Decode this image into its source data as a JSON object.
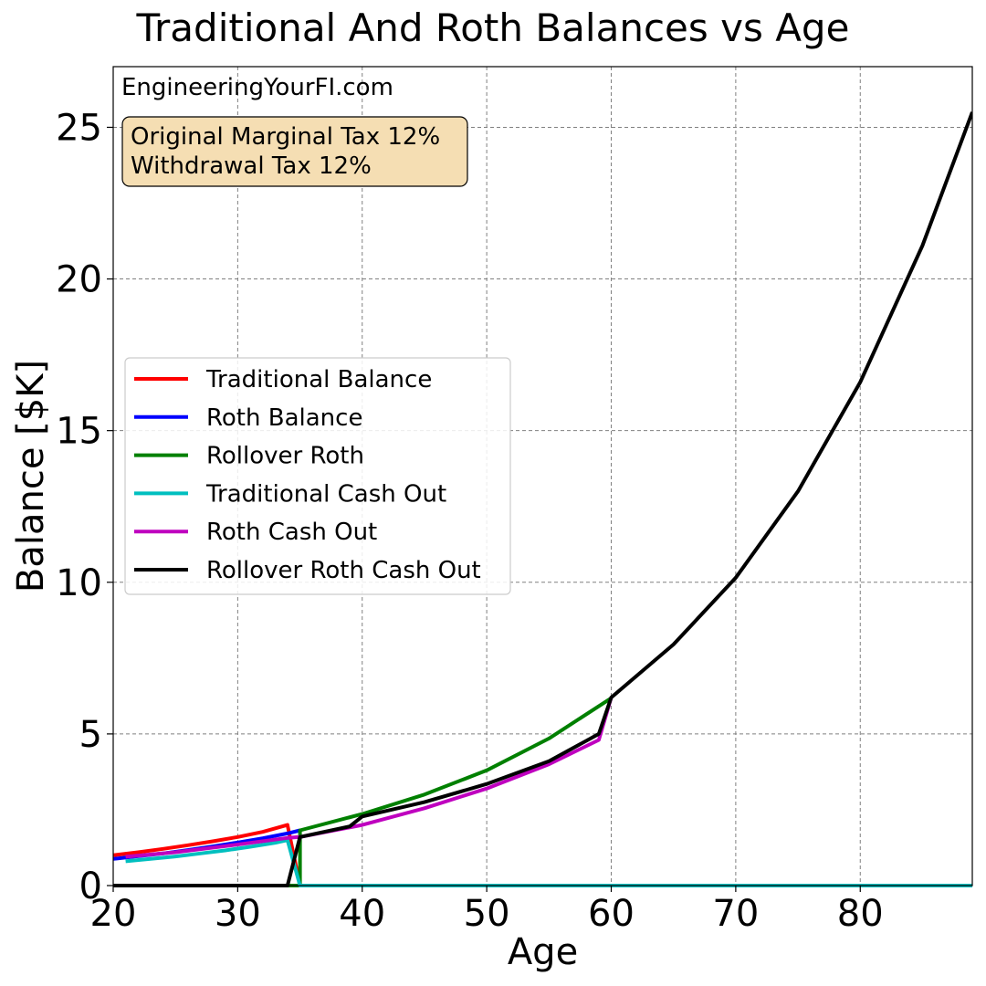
{
  "chart_data": {
    "type": "line",
    "title": "Traditional And Roth Balances vs Age",
    "xlabel": "Age",
    "ylabel": "Balance [$K]",
    "xlim": [
      20,
      89
    ],
    "ylim": [
      0,
      27
    ],
    "xticks": [
      20,
      30,
      40,
      50,
      60,
      70,
      80
    ],
    "yticks": [
      0,
      5,
      10,
      15,
      20,
      25
    ],
    "grid": true,
    "legend_position": "center-left",
    "watermark": "EngineeringYourFI.com",
    "annotation": {
      "lines": [
        "Original Marginal Tax 12%",
        "Withdrawal Tax 12%"
      ],
      "background": "#f5deb3"
    },
    "series": [
      {
        "name": "Traditional Balance",
        "color": "#ff0000",
        "x": [
          20,
          22,
          24,
          26,
          28,
          30,
          32,
          34,
          35
        ],
        "y": [
          1.0,
          1.1,
          1.21,
          1.33,
          1.46,
          1.6,
          1.77,
          2.0,
          0.0
        ]
      },
      {
        "name": "Roth Balance",
        "color": "#0000ff",
        "x": [
          20,
          22,
          24,
          26,
          28,
          30,
          32,
          34,
          35
        ],
        "y": [
          0.88,
          0.97,
          1.06,
          1.17,
          1.29,
          1.42,
          1.56,
          1.72,
          1.82
        ]
      },
      {
        "name": "Rollover Roth",
        "color": "#008000",
        "x": [
          20,
          35,
          35,
          40,
          45,
          50,
          55,
          60
        ],
        "y": [
          0,
          0,
          1.82,
          2.36,
          3.0,
          3.8,
          4.85,
          6.18
        ]
      },
      {
        "name": "Traditional Cash Out",
        "color": "#00bfbf",
        "x": [
          21,
          23,
          25,
          27,
          29,
          31,
          33,
          34,
          35,
          89
        ],
        "y": [
          0.8,
          0.88,
          0.96,
          1.06,
          1.16,
          1.28,
          1.41,
          1.5,
          0.0,
          0.0
        ]
      },
      {
        "name": "Roth Cash Out",
        "color": "#bf00bf",
        "x": [
          21,
          25,
          29,
          34,
          35,
          40,
          45,
          50,
          55,
          59,
          60
        ],
        "y": [
          0.95,
          1.1,
          1.3,
          1.57,
          1.6,
          2.0,
          2.55,
          3.2,
          4.0,
          4.8,
          6.2
        ]
      },
      {
        "name": "Rollover Roth Cash Out",
        "color": "#000000",
        "x": [
          20,
          34,
          35,
          39,
          40,
          45,
          50,
          55,
          59,
          60,
          65,
          70,
          75,
          80,
          85,
          89
        ],
        "y": [
          0,
          0,
          1.6,
          1.95,
          2.28,
          2.75,
          3.35,
          4.1,
          5.0,
          6.2,
          7.95,
          10.15,
          13.0,
          16.6,
          21.1,
          25.5
        ]
      }
    ]
  }
}
